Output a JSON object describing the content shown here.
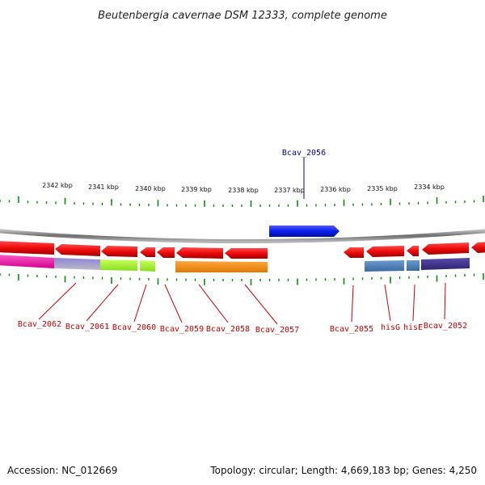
{
  "title": "Beutenbergia cavernae DSM 12333, complete genome",
  "accession": "Accession: NC_012669",
  "summary": "Topology: circular; Length: 4,669,183 bp; Genes: 4,250",
  "kbp_labels": [
    "2342 kbp",
    "2341 kbp",
    "2340 kbp",
    "2339 kbp",
    "2338 kbp",
    "2337 kbp",
    "2336 kbp",
    "2335 kbp",
    "2334 kbp"
  ],
  "gene_labels": [
    "Bcav_2062",
    "Bcav_2061",
    "Bcav_2060",
    "Bcav_2059",
    "Bcav_2058",
    "Bcav_2057",
    "Bcav_2055",
    "hisG",
    "hisE",
    "Bcav_2052"
  ],
  "top_gene_label": "Bcav_2056",
  "colors": {
    "forward_gene": "#0a1eee",
    "reverse_gene": "#ee0a0a",
    "backbone": "#888888",
    "ticks": "#0b8a0b",
    "label_red": "#cc0000",
    "label_blue": "#0000aa"
  }
}
